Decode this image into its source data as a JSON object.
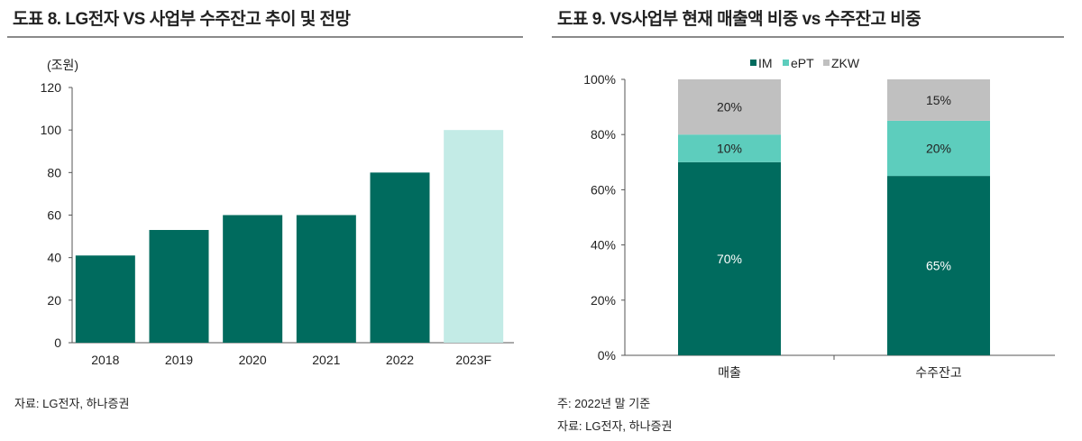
{
  "left": {
    "title": "도표 8. LG전자 VS 사업부 수주잔고 추이 및 전망",
    "source": "자료: LG전자, 하나증권"
  },
  "right": {
    "title": "도표 9. VS사업부 현재 매출액 비중 vs 수주잔고 비중",
    "note": "주: 2022년 말 기준",
    "source": "자료: LG전자, 하나증권"
  },
  "chart_data": [
    {
      "type": "bar",
      "ylabel": "(조원)",
      "categories": [
        "2018",
        "2019",
        "2020",
        "2021",
        "2022",
        "2023F"
      ],
      "values": [
        41,
        53,
        60,
        60,
        80,
        100
      ],
      "ylim": [
        0,
        120
      ],
      "yticks": [
        "0",
        "20",
        "40",
        "60",
        "80",
        "100",
        "120"
      ],
      "grid": false,
      "colors": [
        "#006b5e",
        "#006b5e",
        "#006b5e",
        "#006b5e",
        "#006b5e",
        "#c3ebe6"
      ]
    },
    {
      "type": "bar",
      "stacked": true,
      "categories": [
        "매출",
        "수주잔고"
      ],
      "series": [
        {
          "name": "IM",
          "values": [
            70,
            65
          ],
          "labels": [
            "70%",
            "65%"
          ],
          "color": "#006b5e"
        },
        {
          "name": "ePT",
          "values": [
            10,
            20
          ],
          "labels": [
            "10%",
            "20%"
          ],
          "color": "#5dcdbd"
        },
        {
          "name": "ZKW",
          "values": [
            20,
            15
          ],
          "labels": [
            "20%",
            "15%"
          ],
          "color": "#c0c0c0"
        }
      ],
      "ylim": [
        0,
        100
      ],
      "yticks": [
        "0%",
        "20%",
        "40%",
        "60%",
        "80%",
        "100%"
      ],
      "legend": "top",
      "grid": false
    }
  ]
}
